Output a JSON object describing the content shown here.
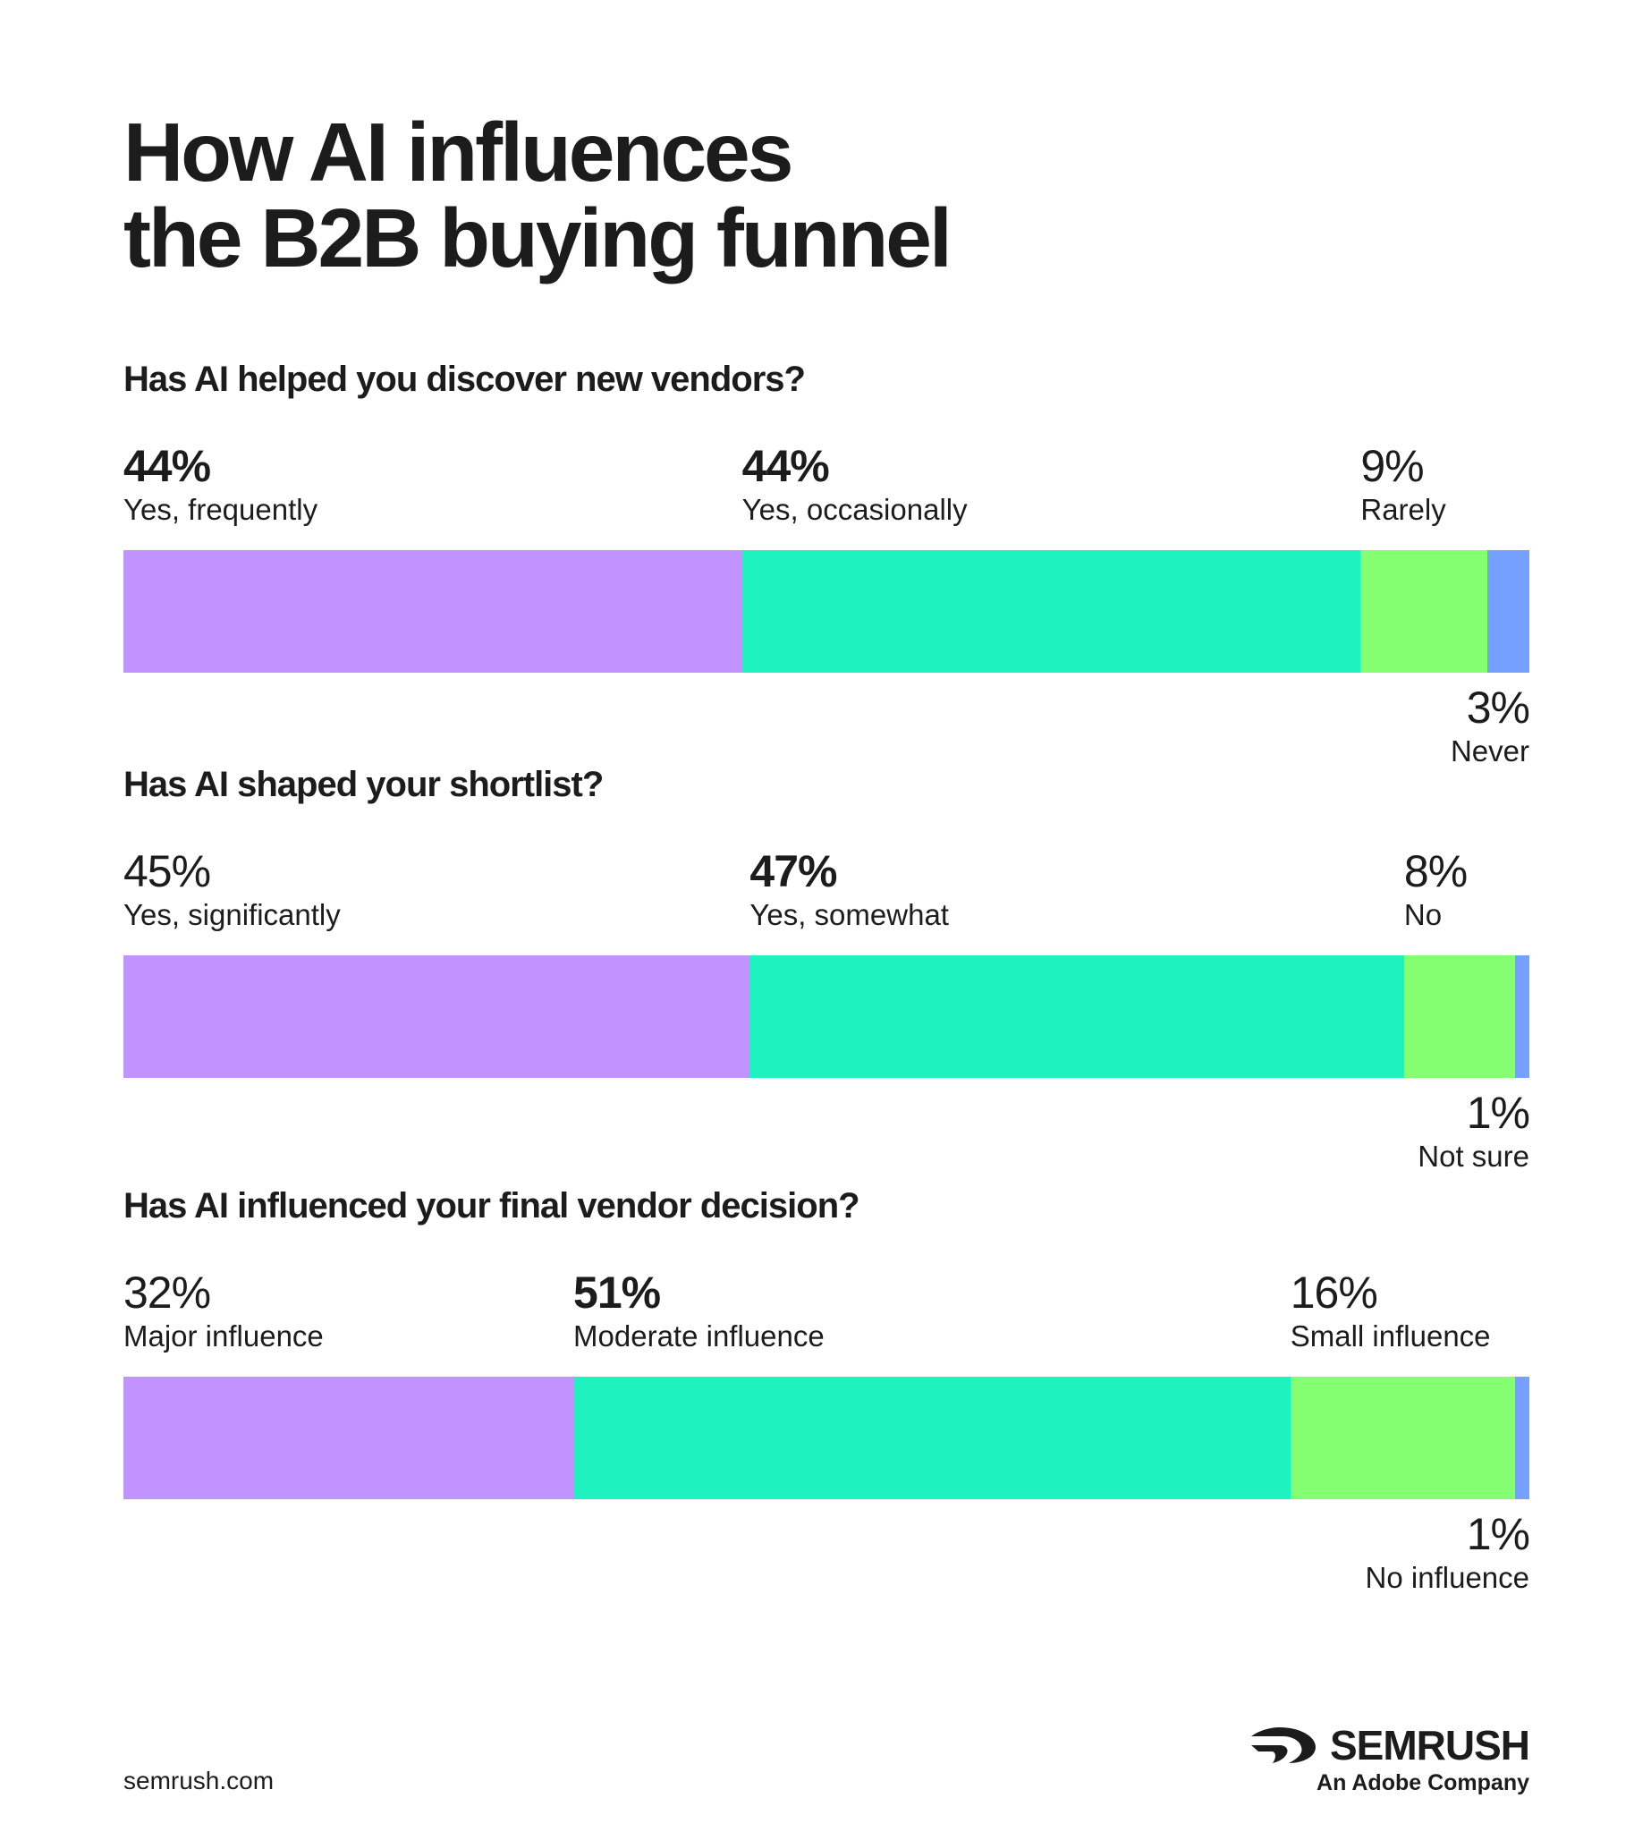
{
  "title_lines": [
    "How AI influences",
    "the B2B buying funnel"
  ],
  "colors": [
    "#c193ff",
    "#1ef2be",
    "#85ff72",
    "#75a0ff"
  ],
  "chart_data": [
    {
      "type": "bar",
      "question": "Has AI helped you discover new vendors?",
      "categories": [
        "Yes, frequently",
        "Yes, occasionally",
        "Rarely",
        "Never"
      ],
      "values": [
        44,
        44,
        9,
        3
      ],
      "value_labels": [
        "44%",
        "44%",
        "9%",
        "3%"
      ]
    },
    {
      "type": "bar",
      "question": "Has AI shaped your shortlist?",
      "categories": [
        "Yes, significantly",
        "Yes, somewhat",
        "No",
        "Not sure"
      ],
      "values": [
        45,
        47,
        8,
        1
      ],
      "value_labels": [
        "45%",
        "47%",
        "8%",
        "1%"
      ]
    },
    {
      "type": "bar",
      "question": "Has AI influenced your final vendor decision?",
      "categories": [
        "Major influence",
        "Moderate influence",
        "Small influence",
        "No influence"
      ],
      "values": [
        32,
        51,
        16,
        1
      ],
      "value_labels": [
        "32%",
        "51%",
        "16%",
        "1%"
      ]
    }
  ],
  "footer": {
    "url": "semrush.com",
    "brand": "SEMRUSH",
    "tagline": "An Adobe Company"
  }
}
